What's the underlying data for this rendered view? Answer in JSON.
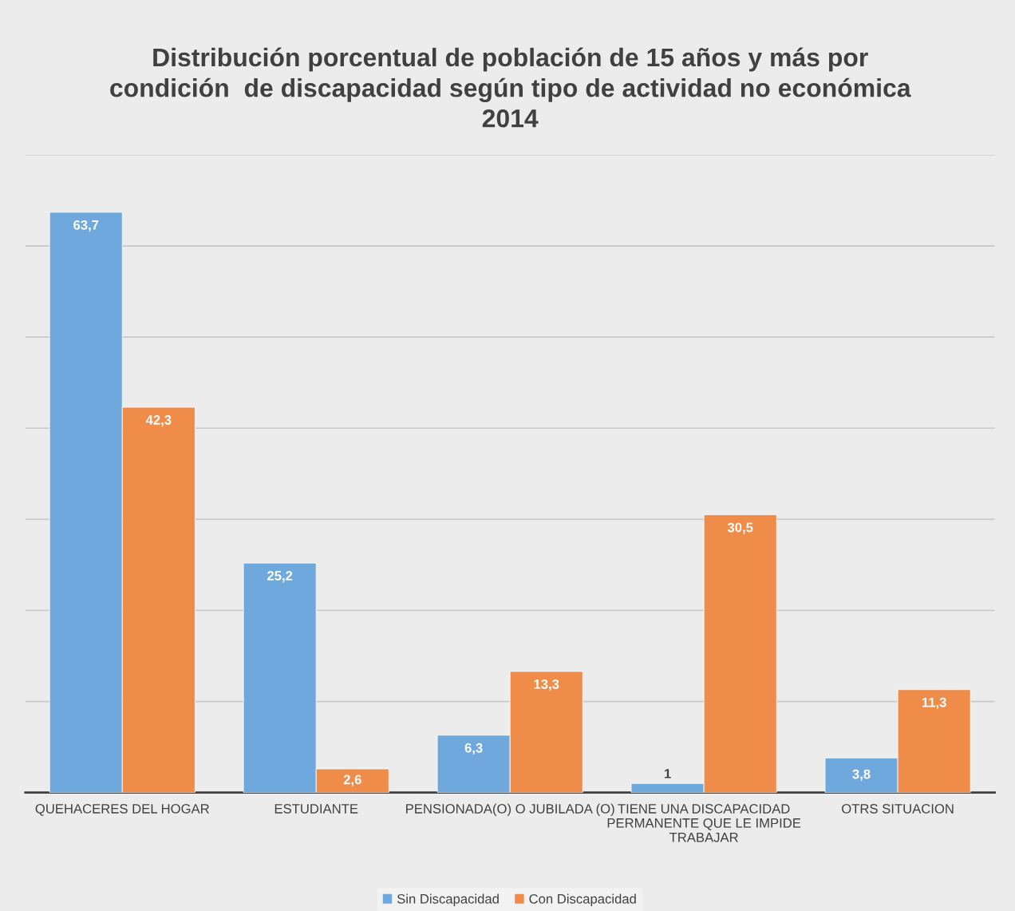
{
  "chart_data": {
    "type": "bar",
    "title": "Distribución porcentual de población de 15 años y más por\ncondición  de discapacidad según tipo de actividad no económica\n2014",
    "categories": [
      "QUEHACERES DEL HOGAR",
      "ESTUDIANTE",
      "PENSIONADA(O) O JUBILADA (O)",
      "TIENE UNA DISCAPACIDAD\nPERMANENTE QUE LE IMPIDE\nTRABAJAR",
      "OTRS SITUACION"
    ],
    "series": [
      {
        "name": "Sin Discapacidad",
        "color": "#6fa8dc",
        "values": [
          63.7,
          25.2,
          6.3,
          1,
          3.8
        ],
        "value_labels": [
          "63,7",
          "25,2",
          "6,3",
          "1",
          "3,8"
        ]
      },
      {
        "name": "Con Discapacidad",
        "color": "#f08c4a",
        "values": [
          42.3,
          2.6,
          13.3,
          30.5,
          11.3
        ],
        "value_labels": [
          "42,3",
          "2,6",
          "13,3",
          "30,5",
          "11,3"
        ]
      }
    ],
    "ylim": [
      0,
      70
    ],
    "yticks": [
      {
        "value": 0,
        "label": null
      },
      {
        "value": 10,
        "label": null
      },
      {
        "value": 20,
        "label": null
      },
      {
        "value": 30,
        "label": null
      },
      {
        "value": 40,
        "label": null
      },
      {
        "value": 50,
        "label": null
      },
      {
        "value": 60,
        "label": null
      },
      {
        "value": 70,
        "label": null
      }
    ],
    "tick_labels": "x",
    "grid": "y",
    "legend": "bottom"
  }
}
